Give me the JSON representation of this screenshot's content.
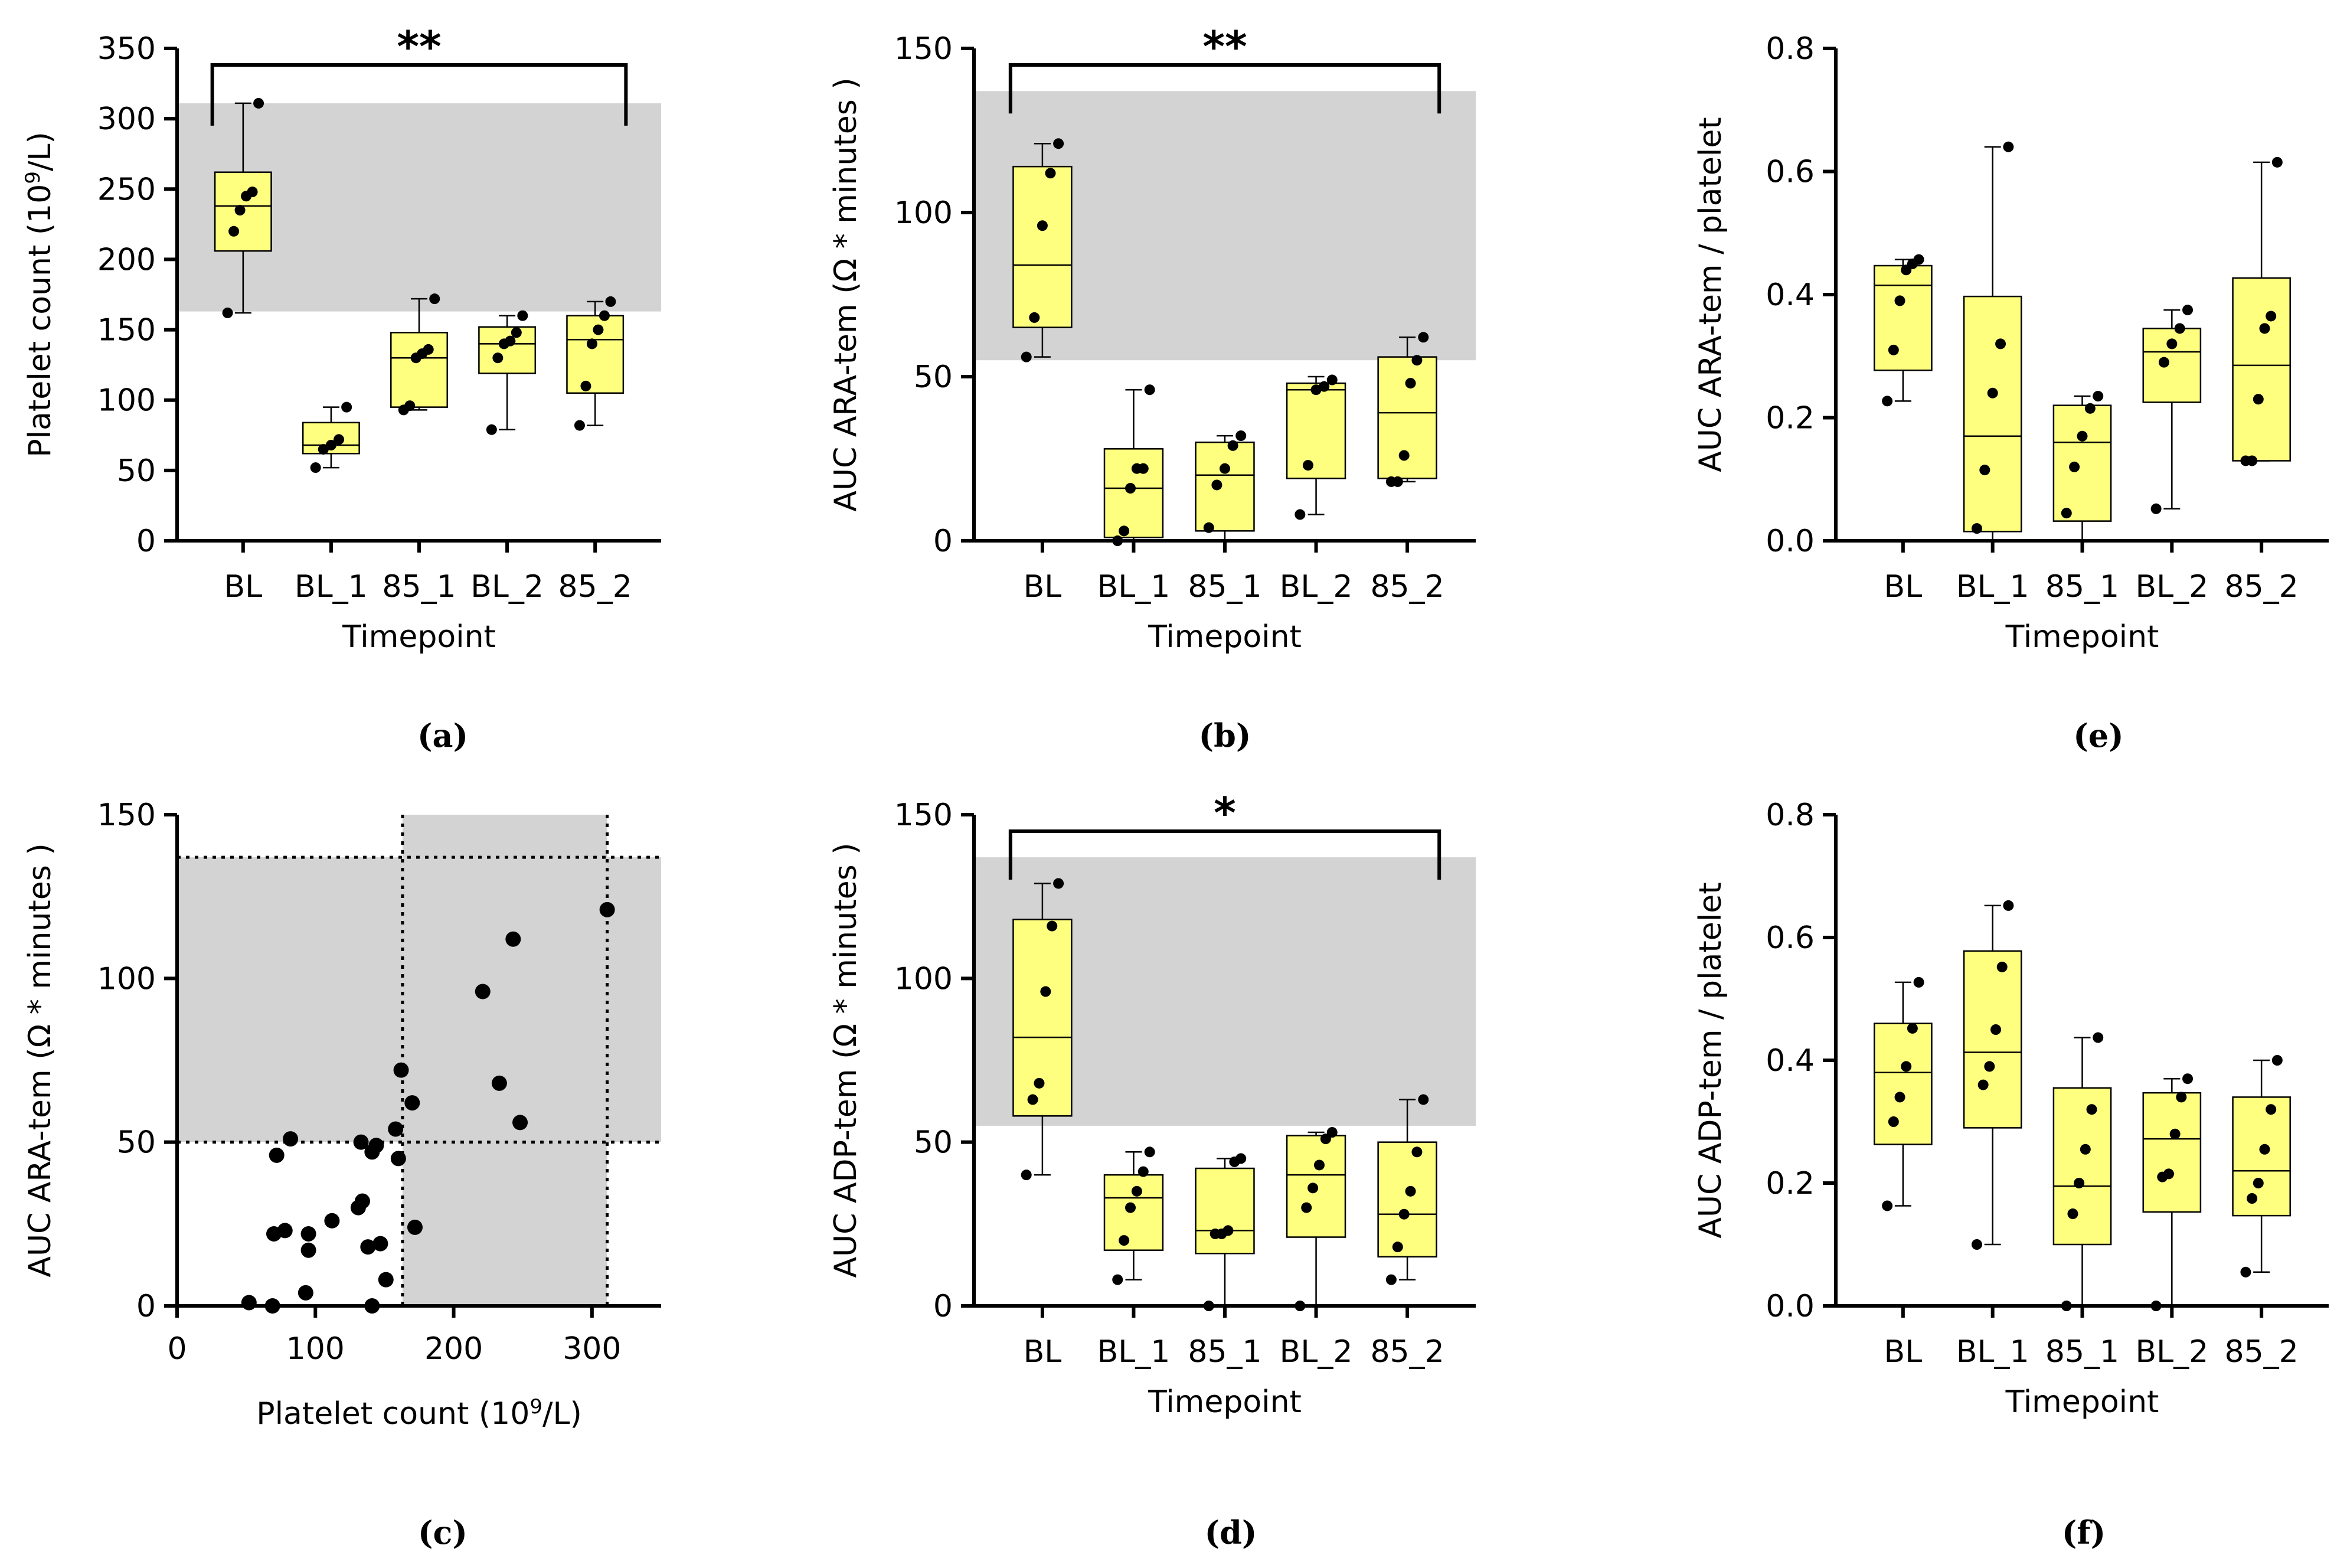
{
  "chart_data": [
    {
      "id": "a",
      "type": "box",
      "caption": "(a)",
      "xlabel": "Timepoint",
      "ylabel_parts": [
        "Platelet count (10",
        "9",
        "/L)"
      ],
      "ylim": [
        0,
        350
      ],
      "yticks": [
        "0",
        "50",
        "100",
        "150",
        "200",
        "250",
        "300",
        "350"
      ],
      "categories": [
        "BL",
        "BL_1",
        "85_1",
        "BL_2",
        "85_2"
      ],
      "reference_band": [
        163,
        311
      ],
      "significance": {
        "label": "**",
        "from": 0,
        "to": 4
      },
      "boxes": [
        {
          "whisker_low": 162,
          "q1": 206,
          "median": 238,
          "q3": 262,
          "whisker_high": 311
        },
        {
          "whisker_low": 52,
          "q1": 62,
          "median": 68,
          "q3": 84,
          "whisker_high": 95
        },
        {
          "whisker_low": 93,
          "q1": 95,
          "median": 130,
          "q3": 148,
          "whisker_high": 172
        },
        {
          "whisker_low": 79,
          "q1": 119,
          "median": 140,
          "q3": 152,
          "whisker_high": 160
        },
        {
          "whisker_low": 82,
          "q1": 105,
          "median": 143,
          "q3": 160,
          "whisker_high": 170
        }
      ],
      "points": [
        [
          162,
          220,
          235,
          245,
          248,
          311
        ],
        [
          52,
          65,
          68,
          72,
          95
        ],
        [
          93,
          96,
          130,
          133,
          136,
          172
        ],
        [
          79,
          130,
          140,
          142,
          148,
          160
        ],
        [
          82,
          110,
          140,
          150,
          160,
          170
        ]
      ]
    },
    {
      "id": "b",
      "type": "box",
      "caption": "(b)",
      "xlabel": "Timepoint",
      "ylabel_parts": [
        "AUC ARA-tem (Ω * minutes )"
      ],
      "ylim": [
        0,
        150
      ],
      "yticks": [
        "0",
        "50",
        "100",
        "150"
      ],
      "categories": [
        "BL",
        "BL_1",
        "85_1",
        "BL_2",
        "85_2"
      ],
      "reference_band": [
        55,
        137
      ],
      "significance": {
        "label": "**",
        "from": 0,
        "to": 4
      },
      "boxes": [
        {
          "whisker_low": 56,
          "q1": 65,
          "median": 84,
          "q3": 114,
          "whisker_high": 121
        },
        {
          "whisker_low": 0,
          "q1": 1,
          "median": 16,
          "q3": 28,
          "whisker_high": 46
        },
        {
          "whisker_low": 0,
          "q1": 3,
          "median": 20,
          "q3": 30,
          "whisker_high": 32
        },
        {
          "whisker_low": 8,
          "q1": 19,
          "median": 46,
          "q3": 48,
          "whisker_high": 50
        },
        {
          "whisker_low": 18,
          "q1": 19,
          "median": 39,
          "q3": 56,
          "whisker_high": 62
        }
      ],
      "points": [
        [
          56,
          68,
          96,
          112,
          121
        ],
        [
          0,
          3,
          16,
          22,
          22,
          46
        ],
        [
          4,
          17,
          22,
          29,
          32
        ],
        [
          8,
          23,
          46,
          47,
          49
        ],
        [
          18,
          18,
          26,
          48,
          55,
          62
        ]
      ]
    },
    {
      "id": "e",
      "type": "box",
      "caption": "(e)",
      "xlabel": "Timepoint",
      "ylabel_parts": [
        "AUC ARA-tem  / platelet"
      ],
      "ylim": [
        0,
        0.8
      ],
      "yticks": [
        "0.0",
        "0.2",
        "0.4",
        "0.6",
        "0.8"
      ],
      "categories": [
        "BL",
        "BL_1",
        "85_1",
        "BL_2",
        "85_2"
      ],
      "boxes": [
        {
          "whisker_low": 0.227,
          "q1": 0.277,
          "median": 0.415,
          "q3": 0.447,
          "whisker_high": 0.457
        },
        {
          "whisker_low": 0.0,
          "q1": 0.015,
          "median": 0.17,
          "q3": 0.397,
          "whisker_high": 0.64
        },
        {
          "whisker_low": 0.0,
          "q1": 0.032,
          "median": 0.16,
          "q3": 0.22,
          "whisker_high": 0.235
        },
        {
          "whisker_low": 0.052,
          "q1": 0.225,
          "median": 0.307,
          "q3": 0.345,
          "whisker_high": 0.375
        },
        {
          "whisker_low": 0.13,
          "q1": 0.13,
          "median": 0.285,
          "q3": 0.427,
          "whisker_high": 0.615
        }
      ],
      "points": [
        [
          0.227,
          0.31,
          0.39,
          0.44,
          0.45,
          0.457
        ],
        [
          0.02,
          0.115,
          0.24,
          0.32,
          0.64
        ],
        [
          0.045,
          0.12,
          0.17,
          0.215,
          0.235
        ],
        [
          0.052,
          0.29,
          0.32,
          0.345,
          0.375
        ],
        [
          0.13,
          0.13,
          0.23,
          0.345,
          0.365,
          0.615
        ]
      ]
    },
    {
      "id": "c",
      "type": "scatter",
      "caption": "(c)",
      "xlabel_parts": [
        "Platelet count (10",
        "9",
        "/L)"
      ],
      "ylabel_parts": [
        "AUC ARA-tem  (Ω * minutes )"
      ],
      "xlim": [
        0,
        350
      ],
      "ylim": [
        0,
        150
      ],
      "xticks": [
        "0",
        "100",
        "200",
        "300"
      ],
      "yticks": [
        "0",
        "50",
        "100",
        "150"
      ],
      "reference_x": [
        163,
        311
      ],
      "reference_y": [
        50,
        137
      ],
      "points": [
        [
          52,
          1
        ],
        [
          69,
          0
        ],
        [
          70,
          22
        ],
        [
          72,
          46
        ],
        [
          78,
          23
        ],
        [
          82,
          51
        ],
        [
          93,
          4
        ],
        [
          95,
          17
        ],
        [
          95,
          22
        ],
        [
          112,
          26
        ],
        [
          131,
          30
        ],
        [
          133,
          50
        ],
        [
          134,
          32
        ],
        [
          138,
          18
        ],
        [
          141,
          0
        ],
        [
          141,
          47
        ],
        [
          144,
          49
        ],
        [
          147,
          19
        ],
        [
          151,
          8
        ],
        [
          158,
          54
        ],
        [
          160,
          45
        ],
        [
          162,
          72
        ],
        [
          170,
          62
        ],
        [
          172,
          24
        ],
        [
          221,
          96
        ],
        [
          233,
          68
        ],
        [
          243,
          112
        ],
        [
          248,
          56
        ],
        [
          311,
          121
        ]
      ]
    },
    {
      "id": "d",
      "type": "box",
      "caption": "(d)",
      "xlabel": "Timepoint",
      "ylabel_parts": [
        "AUC ADP-tem (Ω * minutes )"
      ],
      "ylim": [
        0,
        150
      ],
      "yticks": [
        "0",
        "50",
        "100",
        "150"
      ],
      "categories": [
        "BL",
        "BL_1",
        "85_1",
        "BL_2",
        "85_2"
      ],
      "reference_band": [
        55,
        137
      ],
      "significance": {
        "label": "*",
        "from": 0,
        "to": 4
      },
      "boxes": [
        {
          "whisker_low": 40,
          "q1": 58,
          "median": 82,
          "q3": 118,
          "whisker_high": 129
        },
        {
          "whisker_low": 8,
          "q1": 17,
          "median": 33,
          "q3": 40,
          "whisker_high": 47
        },
        {
          "whisker_low": 0,
          "q1": 16,
          "median": 23,
          "q3": 42,
          "whisker_high": 45
        },
        {
          "whisker_low": 0,
          "q1": 21,
          "median": 40,
          "q3": 52,
          "whisker_high": 53
        },
        {
          "whisker_low": 8,
          "q1": 15,
          "median": 28,
          "q3": 50,
          "whisker_high": 63
        }
      ],
      "points": [
        [
          40,
          63,
          68,
          96,
          116,
          129
        ],
        [
          8,
          20,
          30,
          35,
          41,
          47
        ],
        [
          0,
          22,
          22,
          23,
          44,
          45
        ],
        [
          0,
          30,
          36,
          43,
          51,
          53
        ],
        [
          8,
          18,
          28,
          35,
          47,
          63
        ]
      ]
    },
    {
      "id": "f",
      "type": "box",
      "caption": "(f)",
      "xlabel": "Timepoint",
      "ylabel_parts": [
        "AUC ADP-tem  / platelet"
      ],
      "ylim": [
        0,
        0.8
      ],
      "yticks": [
        "0.0",
        "0.2",
        "0.4",
        "0.6",
        "0.8"
      ],
      "categories": [
        "BL",
        "BL_1",
        "85_1",
        "BL_2",
        "85_2"
      ],
      "boxes": [
        {
          "whisker_low": 0.163,
          "q1": 0.263,
          "median": 0.38,
          "q3": 0.46,
          "whisker_high": 0.527
        },
        {
          "whisker_low": 0.1,
          "q1": 0.29,
          "median": 0.413,
          "q3": 0.578,
          "whisker_high": 0.652
        },
        {
          "whisker_low": 0.0,
          "q1": 0.1,
          "median": 0.195,
          "q3": 0.355,
          "whisker_high": 0.437
        },
        {
          "whisker_low": 0.0,
          "q1": 0.153,
          "median": 0.272,
          "q3": 0.347,
          "whisker_high": 0.37
        },
        {
          "whisker_low": 0.055,
          "q1": 0.147,
          "median": 0.22,
          "q3": 0.34,
          "whisker_high": 0.4
        }
      ],
      "points": [
        [
          0.163,
          0.3,
          0.34,
          0.39,
          0.452,
          0.527
        ],
        [
          0.1,
          0.36,
          0.39,
          0.45,
          0.552,
          0.652
        ],
        [
          0.0,
          0.15,
          0.2,
          0.255,
          0.32,
          0.437
        ],
        [
          0.0,
          0.21,
          0.215,
          0.28,
          0.34,
          0.37
        ],
        [
          0.055,
          0.175,
          0.2,
          0.255,
          0.32,
          0.4
        ]
      ]
    }
  ]
}
